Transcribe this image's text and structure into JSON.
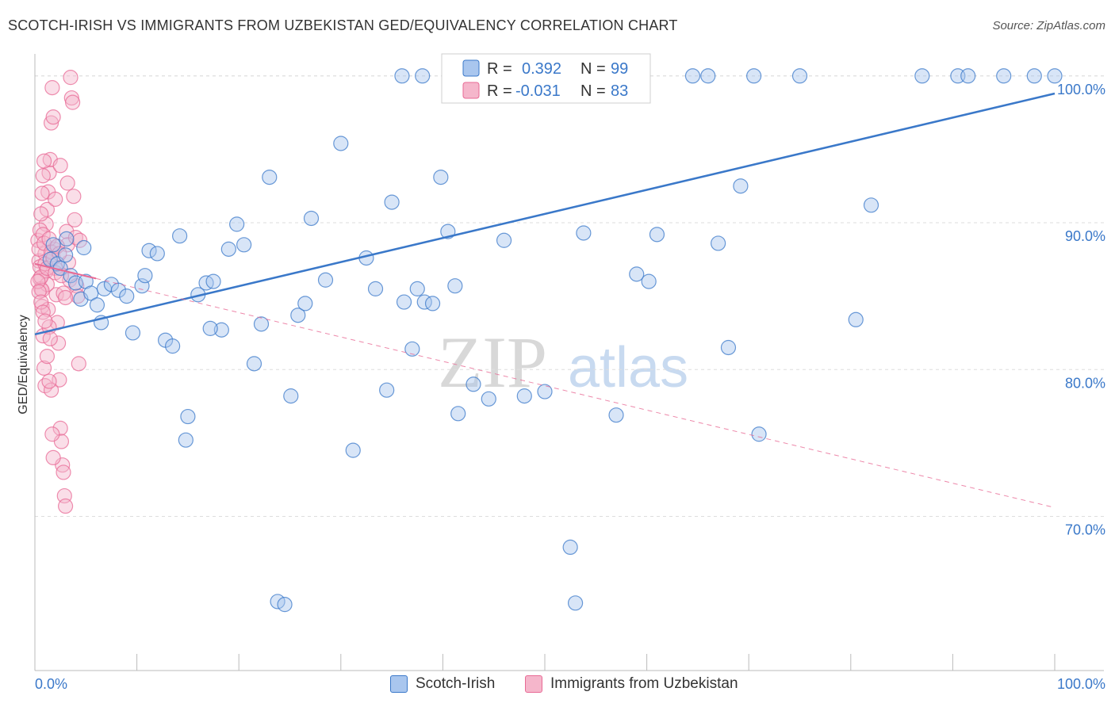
{
  "header": {
    "title": "SCOTCH-IRISH VS IMMIGRANTS FROM UZBEKISTAN GED/EQUIVALENCY CORRELATION CHART",
    "source": "Source: ZipAtlas.com"
  },
  "colors": {
    "blue": "#3a78c9",
    "blue_fill": "#a9c6ee",
    "pink": "#e86a95",
    "pink_fill": "#f5b6cb"
  },
  "watermark": {
    "zip": "ZIP",
    "atlas": "atlas"
  },
  "legend_box": {
    "rows": [
      {
        "r_label": "R =",
        "r_value": "0.392",
        "n_label": "N =",
        "n_value": "99"
      },
      {
        "r_label": "R =",
        "r_value": "-0.031",
        "n_label": "N =",
        "n_value": "83"
      }
    ]
  },
  "chart_data": {
    "type": "scatter",
    "title": "SCOTCH-IRISH VS IMMIGRANTS FROM UZBEKISTAN GED/EQUIVALENCY CORRELATION CHART",
    "xlabel": "",
    "ylabel": "GED/Equivalency",
    "xlim": [
      0,
      100
    ],
    "ylim": [
      59.5,
      101.5
    ],
    "x_tick_labels": [
      "0.0%",
      "100.0%"
    ],
    "y_ticks": [
      70,
      80,
      90,
      100
    ],
    "y_tick_labels": [
      "70.0%",
      "80.0%",
      "90.0%",
      "100.0%"
    ],
    "series": [
      {
        "name": "Scotch-Irish",
        "r": 0.392,
        "n": 99,
        "trend": {
          "x": [
            0,
            100
          ],
          "y": [
            82.4,
            98.8
          ],
          "style": "solid"
        },
        "points": [
          [
            1.5,
            87.5
          ],
          [
            1.8,
            88.5
          ],
          [
            2.2,
            87.2
          ],
          [
            2.5,
            86.9
          ],
          [
            3.1,
            88.9
          ],
          [
            3.5,
            86.4
          ],
          [
            4.0,
            85.9
          ],
          [
            4.5,
            84.8
          ],
          [
            5.0,
            86.0
          ],
          [
            5.5,
            85.2
          ],
          [
            6.1,
            84.4
          ],
          [
            6.8,
            85.5
          ],
          [
            7.5,
            85.8
          ],
          [
            8.2,
            85.4
          ],
          [
            9.0,
            85.0
          ],
          [
            9.6,
            82.5
          ],
          [
            10.5,
            85.7
          ],
          [
            11.2,
            88.1
          ],
          [
            12.0,
            87.9
          ],
          [
            12.8,
            82.0
          ],
          [
            13.5,
            81.6
          ],
          [
            14.2,
            89.1
          ],
          [
            15.0,
            76.8
          ],
          [
            16.0,
            85.1
          ],
          [
            16.8,
            85.9
          ],
          [
            17.5,
            86.0
          ],
          [
            18.3,
            82.7
          ],
          [
            19.0,
            88.2
          ],
          [
            19.8,
            89.9
          ],
          [
            20.5,
            88.5
          ],
          [
            21.5,
            80.4
          ],
          [
            22.2,
            83.1
          ],
          [
            23.0,
            93.1
          ],
          [
            23.8,
            64.2
          ],
          [
            24.5,
            64.0
          ],
          [
            25.1,
            78.2
          ],
          [
            25.8,
            83.7
          ],
          [
            26.5,
            84.5
          ],
          [
            27.1,
            90.3
          ],
          [
            28.5,
            86.1
          ],
          [
            30.0,
            95.4
          ],
          [
            31.2,
            74.5
          ],
          [
            32.5,
            87.6
          ],
          [
            33.4,
            85.5
          ],
          [
            34.5,
            78.6
          ],
          [
            35.0,
            91.4
          ],
          [
            36.2,
            84.6
          ],
          [
            37.0,
            81.4
          ],
          [
            37.5,
            85.5
          ],
          [
            38.2,
            84.6
          ],
          [
            39.0,
            84.5
          ],
          [
            39.8,
            93.1
          ],
          [
            40.5,
            89.4
          ],
          [
            41.2,
            85.7
          ],
          [
            41.5,
            77.0
          ],
          [
            43.0,
            79.0
          ],
          [
            44.5,
            78.0
          ],
          [
            46.0,
            88.8
          ],
          [
            46.5,
            100.0
          ],
          [
            48.0,
            78.2
          ],
          [
            49.0,
            100.0
          ],
          [
            50.0,
            78.5
          ],
          [
            51.5,
            100.0
          ],
          [
            52.5,
            67.9
          ],
          [
            53.0,
            64.1
          ],
          [
            53.8,
            89.3
          ],
          [
            55.0,
            100.0
          ],
          [
            56.5,
            100.0
          ],
          [
            57.0,
            76.9
          ],
          [
            59.0,
            86.5
          ],
          [
            60.2,
            86.0
          ],
          [
            61.0,
            89.2
          ],
          [
            64.5,
            100.0
          ],
          [
            66.0,
            100.0
          ],
          [
            67.0,
            88.6
          ],
          [
            68.0,
            81.5
          ],
          [
            69.2,
            92.5
          ],
          [
            70.5,
            100.0
          ],
          [
            71.0,
            75.6
          ],
          [
            75.0,
            100.0
          ],
          [
            80.5,
            83.4
          ],
          [
            82.0,
            91.2
          ],
          [
            87.0,
            100.0
          ],
          [
            90.5,
            100.0
          ],
          [
            91.5,
            100.0
          ],
          [
            95.0,
            100.0
          ],
          [
            98.0,
            100.0
          ],
          [
            100.0,
            100.0
          ],
          [
            38.0,
            100.0
          ],
          [
            41.0,
            100.0
          ],
          [
            43.5,
            100.0
          ],
          [
            44.0,
            100.0
          ],
          [
            3.0,
            87.8
          ],
          [
            4.8,
            88.3
          ],
          [
            6.5,
            83.2
          ],
          [
            10.8,
            86.4
          ],
          [
            14.8,
            75.2
          ],
          [
            17.2,
            82.8
          ],
          [
            36.0,
            100.0
          ]
        ]
      },
      {
        "name": "Immigrants from Uzbekistan",
        "r": -0.031,
        "n": 83,
        "trend": {
          "x": [
            0,
            100
          ],
          "y": [
            87.2,
            70.6
          ],
          "style": "dashed",
          "solid_until_x": 6.0
        },
        "points": [
          [
            0.3,
            88.8
          ],
          [
            0.4,
            87.4
          ],
          [
            0.5,
            86.2
          ],
          [
            0.6,
            85.5
          ],
          [
            0.7,
            84.3
          ],
          [
            0.8,
            82.3
          ],
          [
            0.9,
            80.1
          ],
          [
            1.0,
            78.9
          ],
          [
            1.1,
            89.9
          ],
          [
            1.2,
            90.9
          ],
          [
            1.3,
            92.1
          ],
          [
            1.4,
            93.4
          ],
          [
            1.5,
            94.3
          ],
          [
            1.6,
            96.8
          ],
          [
            1.7,
            99.2
          ],
          [
            1.8,
            97.2
          ],
          [
            1.9,
            88.2
          ],
          [
            2.0,
            86.9
          ],
          [
            2.1,
            85.1
          ],
          [
            2.2,
            83.2
          ],
          [
            2.3,
            81.8
          ],
          [
            2.4,
            79.3
          ],
          [
            2.5,
            76.0
          ],
          [
            2.6,
            75.1
          ],
          [
            2.7,
            73.5
          ],
          [
            2.8,
            73.0
          ],
          [
            2.9,
            71.4
          ],
          [
            3.0,
            70.7
          ],
          [
            3.1,
            89.4
          ],
          [
            3.2,
            88.5
          ],
          [
            3.3,
            87.3
          ],
          [
            3.4,
            86.1
          ],
          [
            3.5,
            99.9
          ],
          [
            3.6,
            98.5
          ],
          [
            3.7,
            98.2
          ],
          [
            3.8,
            91.8
          ],
          [
            3.9,
            90.2
          ],
          [
            4.0,
            89.0
          ],
          [
            4.1,
            85.7
          ],
          [
            4.2,
            85.0
          ],
          [
            4.3,
            80.4
          ],
          [
            4.4,
            88.8
          ],
          [
            0.5,
            89.5
          ],
          [
            0.6,
            90.6
          ],
          [
            0.7,
            92.0
          ],
          [
            0.8,
            93.2
          ],
          [
            0.9,
            94.2
          ],
          [
            1.0,
            87.9
          ],
          [
            1.1,
            86.7
          ],
          [
            1.2,
            85.8
          ],
          [
            1.3,
            84.1
          ],
          [
            1.4,
            82.9
          ],
          [
            1.5,
            82.1
          ],
          [
            1.6,
            78.6
          ],
          [
            1.7,
            75.6
          ],
          [
            1.8,
            74.0
          ],
          [
            0.4,
            88.2
          ],
          [
            0.5,
            87.0
          ],
          [
            0.6,
            86.3
          ],
          [
            0.7,
            85.4
          ],
          [
            0.8,
            89.2
          ],
          [
            0.9,
            88.6
          ],
          [
            1.0,
            87.2
          ],
          [
            1.2,
            86.9
          ],
          [
            1.4,
            88.9
          ],
          [
            1.6,
            88.0
          ],
          [
            1.8,
            87.6
          ],
          [
            2.0,
            86.6
          ],
          [
            2.2,
            88.4
          ],
          [
            2.4,
            87.9
          ],
          [
            2.6,
            86.4
          ],
          [
            2.8,
            85.2
          ],
          [
            3.0,
            84.9
          ],
          [
            0.3,
            86.0
          ],
          [
            0.4,
            85.3
          ],
          [
            0.6,
            84.6
          ],
          [
            0.8,
            83.9
          ],
          [
            1.0,
            83.3
          ],
          [
            1.2,
            80.9
          ],
          [
            1.4,
            79.2
          ],
          [
            2.0,
            91.6
          ],
          [
            2.5,
            93.9
          ],
          [
            3.2,
            92.7
          ]
        ]
      }
    ],
    "legend": [
      "Scotch-Irish",
      "Immigrants from Uzbekistan"
    ]
  }
}
